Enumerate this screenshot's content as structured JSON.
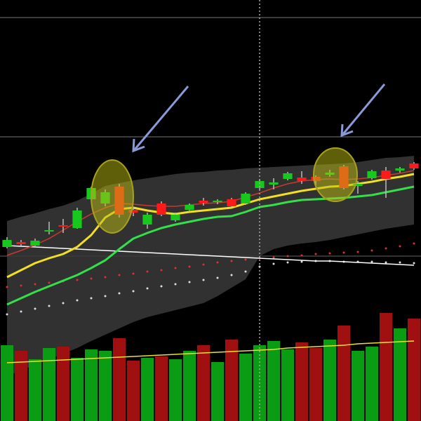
{
  "chart_data": {
    "type": "candlestick",
    "ylim": [
      0,
      60
    ],
    "up_color": "#16c91c",
    "down_color": "#ff1a1a",
    "wick_color": "#bbbbbb",
    "open": [
      24.8,
      25.5,
      25.0,
      27.0,
      27.9,
      27.5,
      31.6,
      31.0,
      33.4,
      30.1,
      28.0,
      31.0,
      28.6,
      30.1,
      31.4,
      31.2,
      31.6,
      31.0,
      33.2,
      33.7,
      34.5,
      34.7,
      34.8,
      35.1,
      36.3,
      33.5,
      34.6,
      35.7,
      35.7,
      36.7
    ],
    "high": [
      26.2,
      25.8,
      26.0,
      28.4,
      28.8,
      30.4,
      33.4,
      33.0,
      33.8,
      30.5,
      29.7,
      31.3,
      29.7,
      31.0,
      31.8,
      31.6,
      31.8,
      32.6,
      34.4,
      34.6,
      35.5,
      35.6,
      35.0,
      35.8,
      36.5,
      34.2,
      35.8,
      36.2,
      36.2,
      36.9
    ],
    "low": [
      24.6,
      25.0,
      24.8,
      26.6,
      26.8,
      27.4,
      31.4,
      30.6,
      29.0,
      29.2,
      27.4,
      29.2,
      28.4,
      30.0,
      30.7,
      30.9,
      30.4,
      30.8,
      33.0,
      33.0,
      34.3,
      33.8,
      33.6,
      34.8,
      33.0,
      32.4,
      34.4,
      31.8,
      35.4,
      35.8
    ],
    "close": [
      25.8,
      25.2,
      25.7,
      27.2,
      27.7,
      30.0,
      33.2,
      32.6,
      29.4,
      29.7,
      29.4,
      29.4,
      29.4,
      30.8,
      31.1,
      31.4,
      30.6,
      32.4,
      34.2,
      34.0,
      35.3,
      34.2,
      34.2,
      35.4,
      33.2,
      33.8,
      35.6,
      34.5,
      36.0,
      36.0
    ],
    "band": {
      "color": "#3a3a3a",
      "upper": [
        28.5,
        29.1,
        29.6,
        30.2,
        30.7,
        31.4,
        32.4,
        33.5,
        33.9,
        34.3,
        34.6,
        34.9,
        35.2,
        35.4,
        35.5,
        35.7,
        35.8,
        36.0,
        36.1,
        36.2,
        36.3,
        36.4,
        36.5,
        36.6,
        36.7,
        36.9,
        37.2,
        37.5,
        37.6,
        37.8
      ],
      "lower": [
        6.4,
        7.2,
        8.0,
        8.8,
        9.6,
        10.4,
        11.4,
        12.3,
        13.2,
        14.1,
        14.8,
        15.3,
        15.8,
        16.3,
        16.8,
        17.8,
        19.0,
        20.2,
        23.5,
        24.5,
        25.0,
        25.3,
        25.5,
        25.8,
        26.2,
        26.6,
        27.0,
        27.4,
        27.7,
        28.0
      ]
    },
    "overlays": [
      {
        "style": "dots",
        "color": "#e03030",
        "values": [
          19.1,
          19.3,
          19.5,
          19.7,
          19.9,
          20.1,
          20.3,
          20.5,
          20.8,
          21.0,
          21.3,
          21.5,
          21.8,
          22.0,
          22.3,
          22.6,
          22.8,
          23.0,
          23.2,
          23.3,
          23.5,
          23.6,
          23.8,
          23.9,
          24.0,
          24.1,
          24.3,
          24.6,
          24.9,
          25.3
        ]
      },
      {
        "style": "dots",
        "color": "#dddddd",
        "values": [
          15.2,
          15.6,
          16.0,
          16.4,
          16.8,
          17.2,
          17.5,
          17.8,
          18.2,
          18.5,
          18.9,
          19.2,
          19.5,
          19.8,
          20.1,
          20.4,
          20.8,
          21.3,
          22.0,
          22.4,
          22.6,
          22.7,
          22.8,
          22.8,
          22.7,
          22.7,
          22.7,
          22.6,
          22.6,
          22.5
        ]
      },
      {
        "style": "line",
        "color": "#ffffff",
        "width": 1.5,
        "values": [
          25.0,
          24.9,
          24.8,
          24.7,
          24.6,
          24.5,
          24.4,
          24.3,
          24.2,
          24.1,
          24.0,
          23.9,
          23.8,
          23.7,
          23.6,
          23.5,
          23.4,
          23.3,
          23.2,
          23.1,
          23.0,
          22.9,
          22.8,
          22.8,
          22.7,
          22.6,
          22.5,
          22.4,
          22.3,
          22.2
        ]
      },
      {
        "style": "line",
        "color": "#c83a2a",
        "width": 1.5,
        "values": [
          23.6,
          24.3,
          25.1,
          26.0,
          27.2,
          28.4,
          29.5,
          30.4,
          31.0,
          30.9,
          30.7,
          30.6,
          30.6,
          30.8,
          31.0,
          31.1,
          31.3,
          31.9,
          32.5,
          33.2,
          33.8,
          34.2,
          34.4,
          34.5,
          34.4,
          34.5,
          34.7,
          35.0,
          35.3,
          35.7
        ]
      },
      {
        "style": "line",
        "color": "#33e04a",
        "width": 3,
        "values": [
          16.6,
          17.5,
          18.4,
          19.2,
          20.0,
          20.8,
          21.8,
          22.9,
          24.5,
          26.0,
          26.8,
          27.5,
          28.0,
          28.4,
          28.8,
          29.1,
          29.2,
          29.8,
          30.5,
          30.8,
          31.2,
          31.5,
          31.6,
          31.7,
          31.8,
          32.0,
          32.2,
          32.6,
          33.0,
          33.4
        ]
      },
      {
        "style": "line",
        "color": "#f2e020",
        "width": 3,
        "values": [
          20.5,
          21.5,
          22.5,
          23.2,
          23.8,
          24.8,
          26.5,
          29.0,
          30.2,
          30.4,
          30.0,
          29.7,
          29.5,
          29.8,
          30.0,
          30.2,
          30.4,
          31.0,
          31.6,
          32.0,
          32.4,
          32.8,
          33.1,
          33.4,
          33.5,
          33.8,
          34.1,
          34.5,
          34.8,
          35.2
        ]
      }
    ],
    "volume": {
      "ylim": [
        0,
        200
      ],
      "up_color": "#0a9c12",
      "down_color": "#a01010",
      "ma_color": "#e8e030",
      "values": [
        108,
        100,
        88,
        104,
        106,
        90,
        102,
        100,
        118,
        86,
        90,
        92,
        88,
        100,
        108,
        84,
        116,
        96,
        108,
        114,
        102,
        112,
        104,
        116,
        136,
        100,
        106,
        154,
        132,
        146
      ],
      "ma": [
        83,
        84,
        85,
        86,
        87,
        88,
        89,
        90,
        91,
        92,
        93,
        94,
        95,
        96,
        97,
        98,
        99,
        100,
        101,
        102,
        104,
        105,
        106,
        107,
        108,
        110,
        111,
        112,
        113,
        114
      ]
    }
  }
}
